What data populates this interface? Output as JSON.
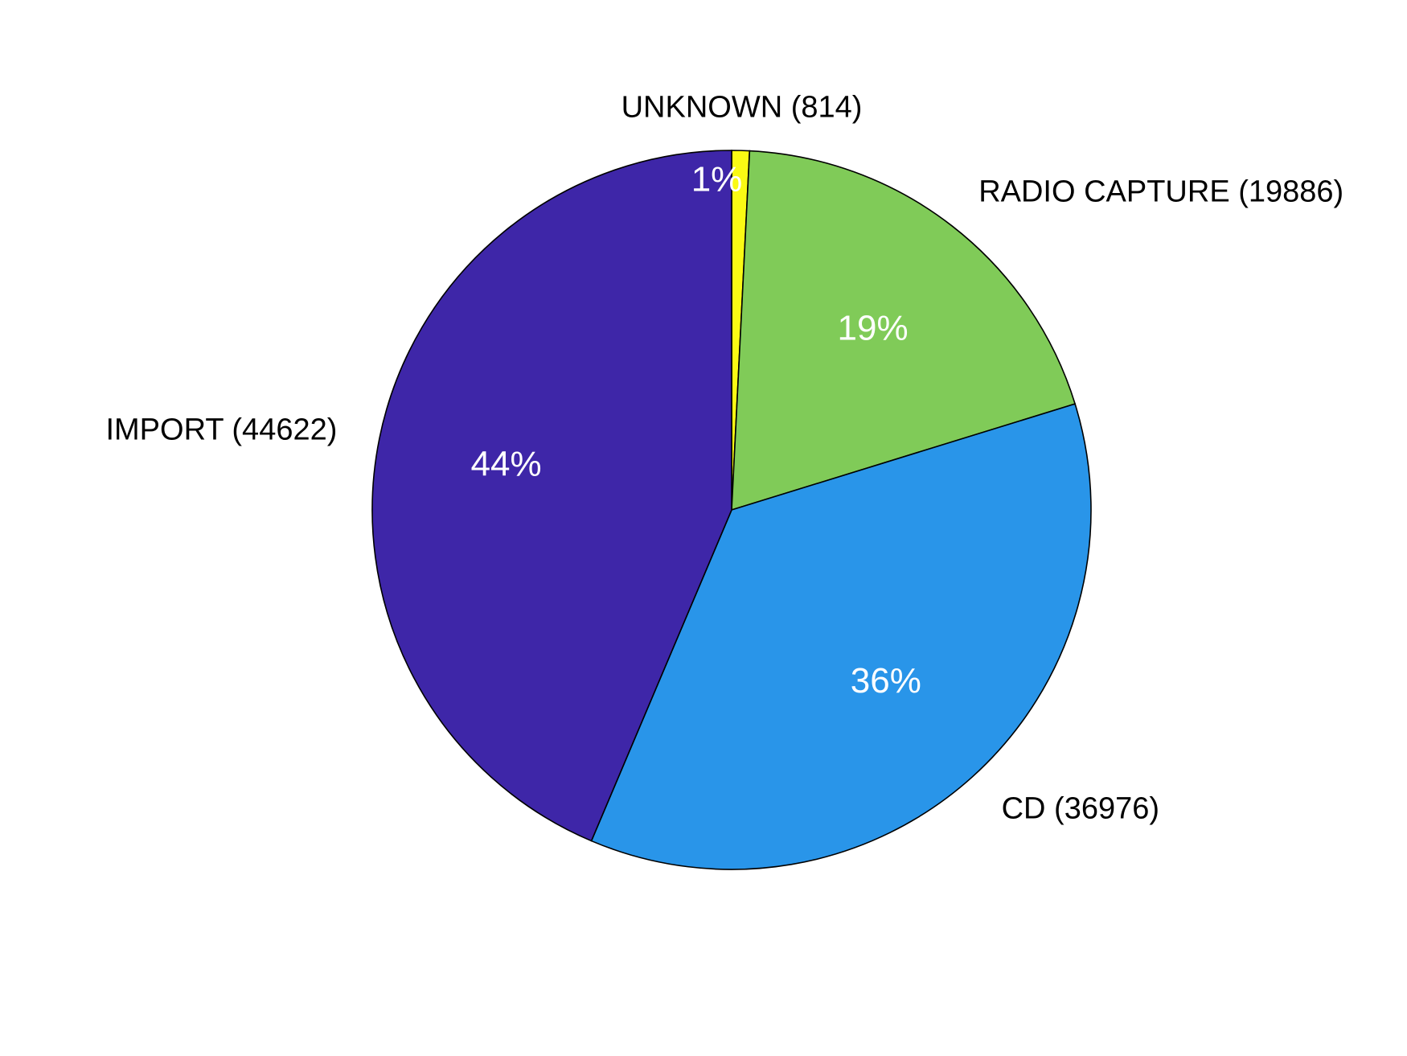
{
  "chart_data": {
    "type": "pie",
    "slices": [
      {
        "name": "UNKNOWN",
        "value": 814,
        "color": "#fafa14",
        "label": "UNKNOWN  (814)",
        "percent_label": "1%"
      },
      {
        "name": "RADIO CAPTURE",
        "value": 19886,
        "color": "#80cb58",
        "label": "RADIO CAPTURE  (19886)",
        "percent_label": "19%"
      },
      {
        "name": "CD",
        "value": 36976,
        "color": "#2995e9",
        "label": "CD  (36976)",
        "percent_label": "36%"
      },
      {
        "name": "IMPORT",
        "value": 44622,
        "color": "#3e26a8",
        "label": "IMPORT  (44622)",
        "percent_label": "44%"
      }
    ],
    "start_angle": "top",
    "direction": "clockwise",
    "title": "",
    "legend": "none"
  }
}
